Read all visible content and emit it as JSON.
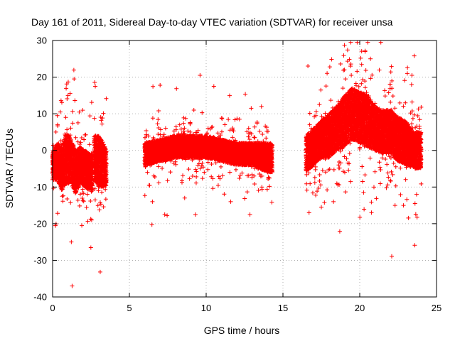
{
  "chart_data": {
    "type": "scatter",
    "title": "Day 161 of 2011, Sidereal Day-to-day VTEC variation (SDTVAR) for receiver unsa",
    "xlabel": "GPS time / hours",
    "ylabel": "SDTVAR / TECUs",
    "xlim": [
      0,
      25
    ],
    "ylim": [
      -40,
      30
    ],
    "xticks": [
      0,
      5,
      10,
      15,
      20,
      25
    ],
    "yticks": [
      -40,
      -30,
      -20,
      -10,
      0,
      10,
      20,
      30
    ],
    "xtick_labels": [
      "0",
      "5",
      "10",
      "15",
      "20",
      "25"
    ],
    "ytick_labels": [
      "-40",
      "-30",
      "-20",
      "-10",
      "0",
      "10",
      "20",
      "30"
    ],
    "grid": true,
    "marker": "plus",
    "color": "#ff0000",
    "series": [
      {
        "name": "SDTVAR",
        "segments": [
          {
            "x_start": 0.0,
            "x_end": 2.6,
            "profile": [
              [
                0.0,
                -4,
                4,
                8
              ],
              [
                0.3,
                -3,
                5,
                9
              ],
              [
                0.6,
                -5,
                6,
                9
              ],
              [
                0.9,
                -2,
                7,
                10
              ],
              [
                1.2,
                -3,
                6,
                10
              ],
              [
                1.5,
                -6,
                6,
                9
              ],
              [
                1.8,
                -4,
                5,
                9
              ],
              [
                2.1,
                -5,
                5,
                9
              ],
              [
                2.4,
                -6,
                5,
                9
              ],
              [
                2.6,
                -6,
                5,
                9
              ]
            ]
          },
          {
            "x_start": 2.7,
            "x_end": 3.5,
            "profile": [
              [
                2.7,
                -2,
                6,
                10
              ],
              [
                3.0,
                -3,
                7,
                12
              ],
              [
                3.3,
                -4,
                6,
                10
              ],
              [
                3.5,
                -5,
                5,
                9
              ]
            ]
          },
          {
            "x_start": 6.0,
            "x_end": 14.3,
            "profile": [
              [
                6.0,
                -1,
                3,
                6
              ],
              [
                7.0,
                0,
                3,
                6
              ],
              [
                8.0,
                1,
                3,
                5
              ],
              [
                9.0,
                1,
                3,
                5
              ],
              [
                10.0,
                1,
                3,
                6
              ],
              [
                11.0,
                0,
                3,
                6
              ],
              [
                12.0,
                -1,
                3,
                6
              ],
              [
                13.0,
                -1,
                3,
                6
              ],
              [
                14.0,
                -2,
                4,
                7
              ],
              [
                14.3,
                -2,
                4,
                7
              ]
            ]
          },
          {
            "x_start": 16.5,
            "x_end": 24.0,
            "profile": [
              [
                16.5,
                -1,
                5,
                8
              ],
              [
                17.0,
                1,
                5,
                8
              ],
              [
                17.5,
                3,
                5,
                9
              ],
              [
                18.0,
                4,
                6,
                10
              ],
              [
                18.5,
                6,
                6,
                11
              ],
              [
                19.0,
                8,
                7,
                12
              ],
              [
                19.5,
                10,
                7,
                12
              ],
              [
                20.0,
                9,
                7,
                12
              ],
              [
                20.5,
                8,
                7,
                12
              ],
              [
                21.0,
                6,
                6,
                11
              ],
              [
                21.5,
                5,
                6,
                10
              ],
              [
                22.0,
                5,
                6,
                10
              ],
              [
                22.5,
                3,
                6,
                10
              ],
              [
                23.0,
                2,
                6,
                9
              ],
              [
                23.5,
                0,
                5,
                8
              ],
              [
                24.0,
                0,
                5,
                8
              ]
            ]
          }
        ],
        "outliers": [
          [
            1.27,
            -37
          ],
          [
            1.22,
            -25
          ],
          [
            1.4,
            19.5
          ],
          [
            1.9,
            -20.5
          ],
          [
            2.78,
            17.5
          ],
          [
            1.0,
            15
          ],
          [
            0.5,
            10.5
          ],
          [
            9.2,
            11
          ],
          [
            9.3,
            -17.5
          ],
          [
            9.6,
            20.5
          ],
          [
            10.5,
            17.5
          ],
          [
            11.6,
            -14
          ],
          [
            12.85,
            -17.5
          ],
          [
            13.6,
            12
          ],
          [
            19.0,
            22
          ],
          [
            19.4,
            23
          ],
          [
            20.35,
            27
          ],
          [
            20.7,
            25
          ],
          [
            22.3,
            -15
          ],
          [
            22.85,
            -15
          ],
          [
            23.1,
            21
          ],
          [
            23.4,
            20.5
          ],
          [
            23.55,
            25.8
          ],
          [
            23.6,
            -14.5
          ],
          [
            23.7,
            -12
          ],
          [
            24.0,
            11.8
          ],
          [
            16.7,
            -17
          ],
          [
            17.5,
            -15.5
          ],
          [
            8.6,
            -13
          ],
          [
            7.3,
            -17.5
          ],
          [
            6.5,
            -14
          ]
        ]
      }
    ]
  }
}
